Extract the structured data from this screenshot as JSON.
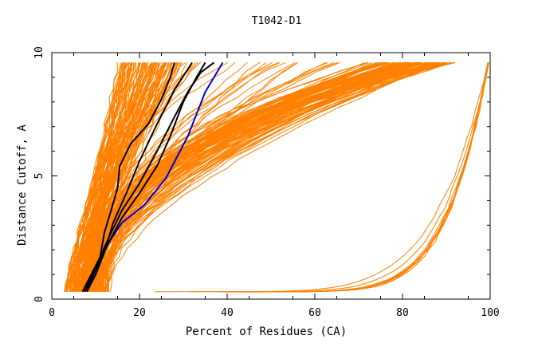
{
  "chart_data": {
    "type": "line",
    "title": "T1042-D1",
    "xlabel": "Percent of Residues (CA)",
    "ylabel": "Distance Cutoff, A",
    "xlim": [
      0,
      100
    ],
    "ylim": [
      0,
      10
    ],
    "xticks": [
      "0",
      "20",
      "40",
      "60",
      "80",
      "100"
    ],
    "yticks": [
      "0",
      "5",
      "10"
    ],
    "grid": false,
    "legend": "none",
    "colors": {
      "models": "#ff8000",
      "highlight": "#000000",
      "best": "#0000cc"
    },
    "series": [
      {
        "color": "#0000cc",
        "points": [
          [
            8,
            0.3
          ],
          [
            10,
            1.2
          ],
          [
            13,
            2.3
          ],
          [
            16,
            3.1
          ],
          [
            21,
            3.8
          ],
          [
            26,
            4.9
          ],
          [
            31,
            6.6
          ],
          [
            35,
            8.4
          ],
          [
            39,
            9.6
          ]
        ]
      },
      {
        "color": "#000000",
        "points": [
          [
            7,
            0.3
          ],
          [
            9,
            1.0
          ],
          [
            11,
            1.7
          ],
          [
            12,
            2.7
          ],
          [
            13.5,
            3.6
          ],
          [
            15,
            4.5
          ],
          [
            15.5,
            5.4
          ],
          [
            18,
            6.3
          ],
          [
            22,
            7.1
          ],
          [
            25,
            8.1
          ],
          [
            27,
            9.0
          ],
          [
            28,
            9.6
          ]
        ]
      },
      {
        "color": "#000000",
        "points": [
          [
            7.5,
            0.3
          ],
          [
            10,
            1.2
          ],
          [
            13,
            2.3
          ],
          [
            16,
            3.3
          ],
          [
            20,
            4.3
          ],
          [
            24,
            5.4
          ],
          [
            27,
            6.6
          ],
          [
            30,
            8.0
          ],
          [
            33,
            9.0
          ],
          [
            35,
            9.6
          ]
        ]
      },
      {
        "color": "#000000",
        "points": [
          [
            8,
            0.3
          ],
          [
            10,
            1.0
          ],
          [
            12,
            1.9
          ],
          [
            14,
            3.1
          ],
          [
            17,
            4.3
          ],
          [
            20,
            5.6
          ],
          [
            24,
            7.1
          ],
          [
            28,
            8.5
          ],
          [
            32,
            9.6
          ]
        ]
      },
      {
        "color": "#000000",
        "points": [
          [
            7.5,
            0.3
          ],
          [
            10,
            1.3
          ],
          [
            13,
            2.5
          ],
          [
            16,
            3.6
          ],
          [
            20,
            4.7
          ],
          [
            24,
            6.0
          ],
          [
            28,
            7.4
          ],
          [
            31,
            8.4
          ],
          [
            34,
            9.2
          ],
          [
            37,
            9.6
          ]
        ]
      }
    ]
  }
}
